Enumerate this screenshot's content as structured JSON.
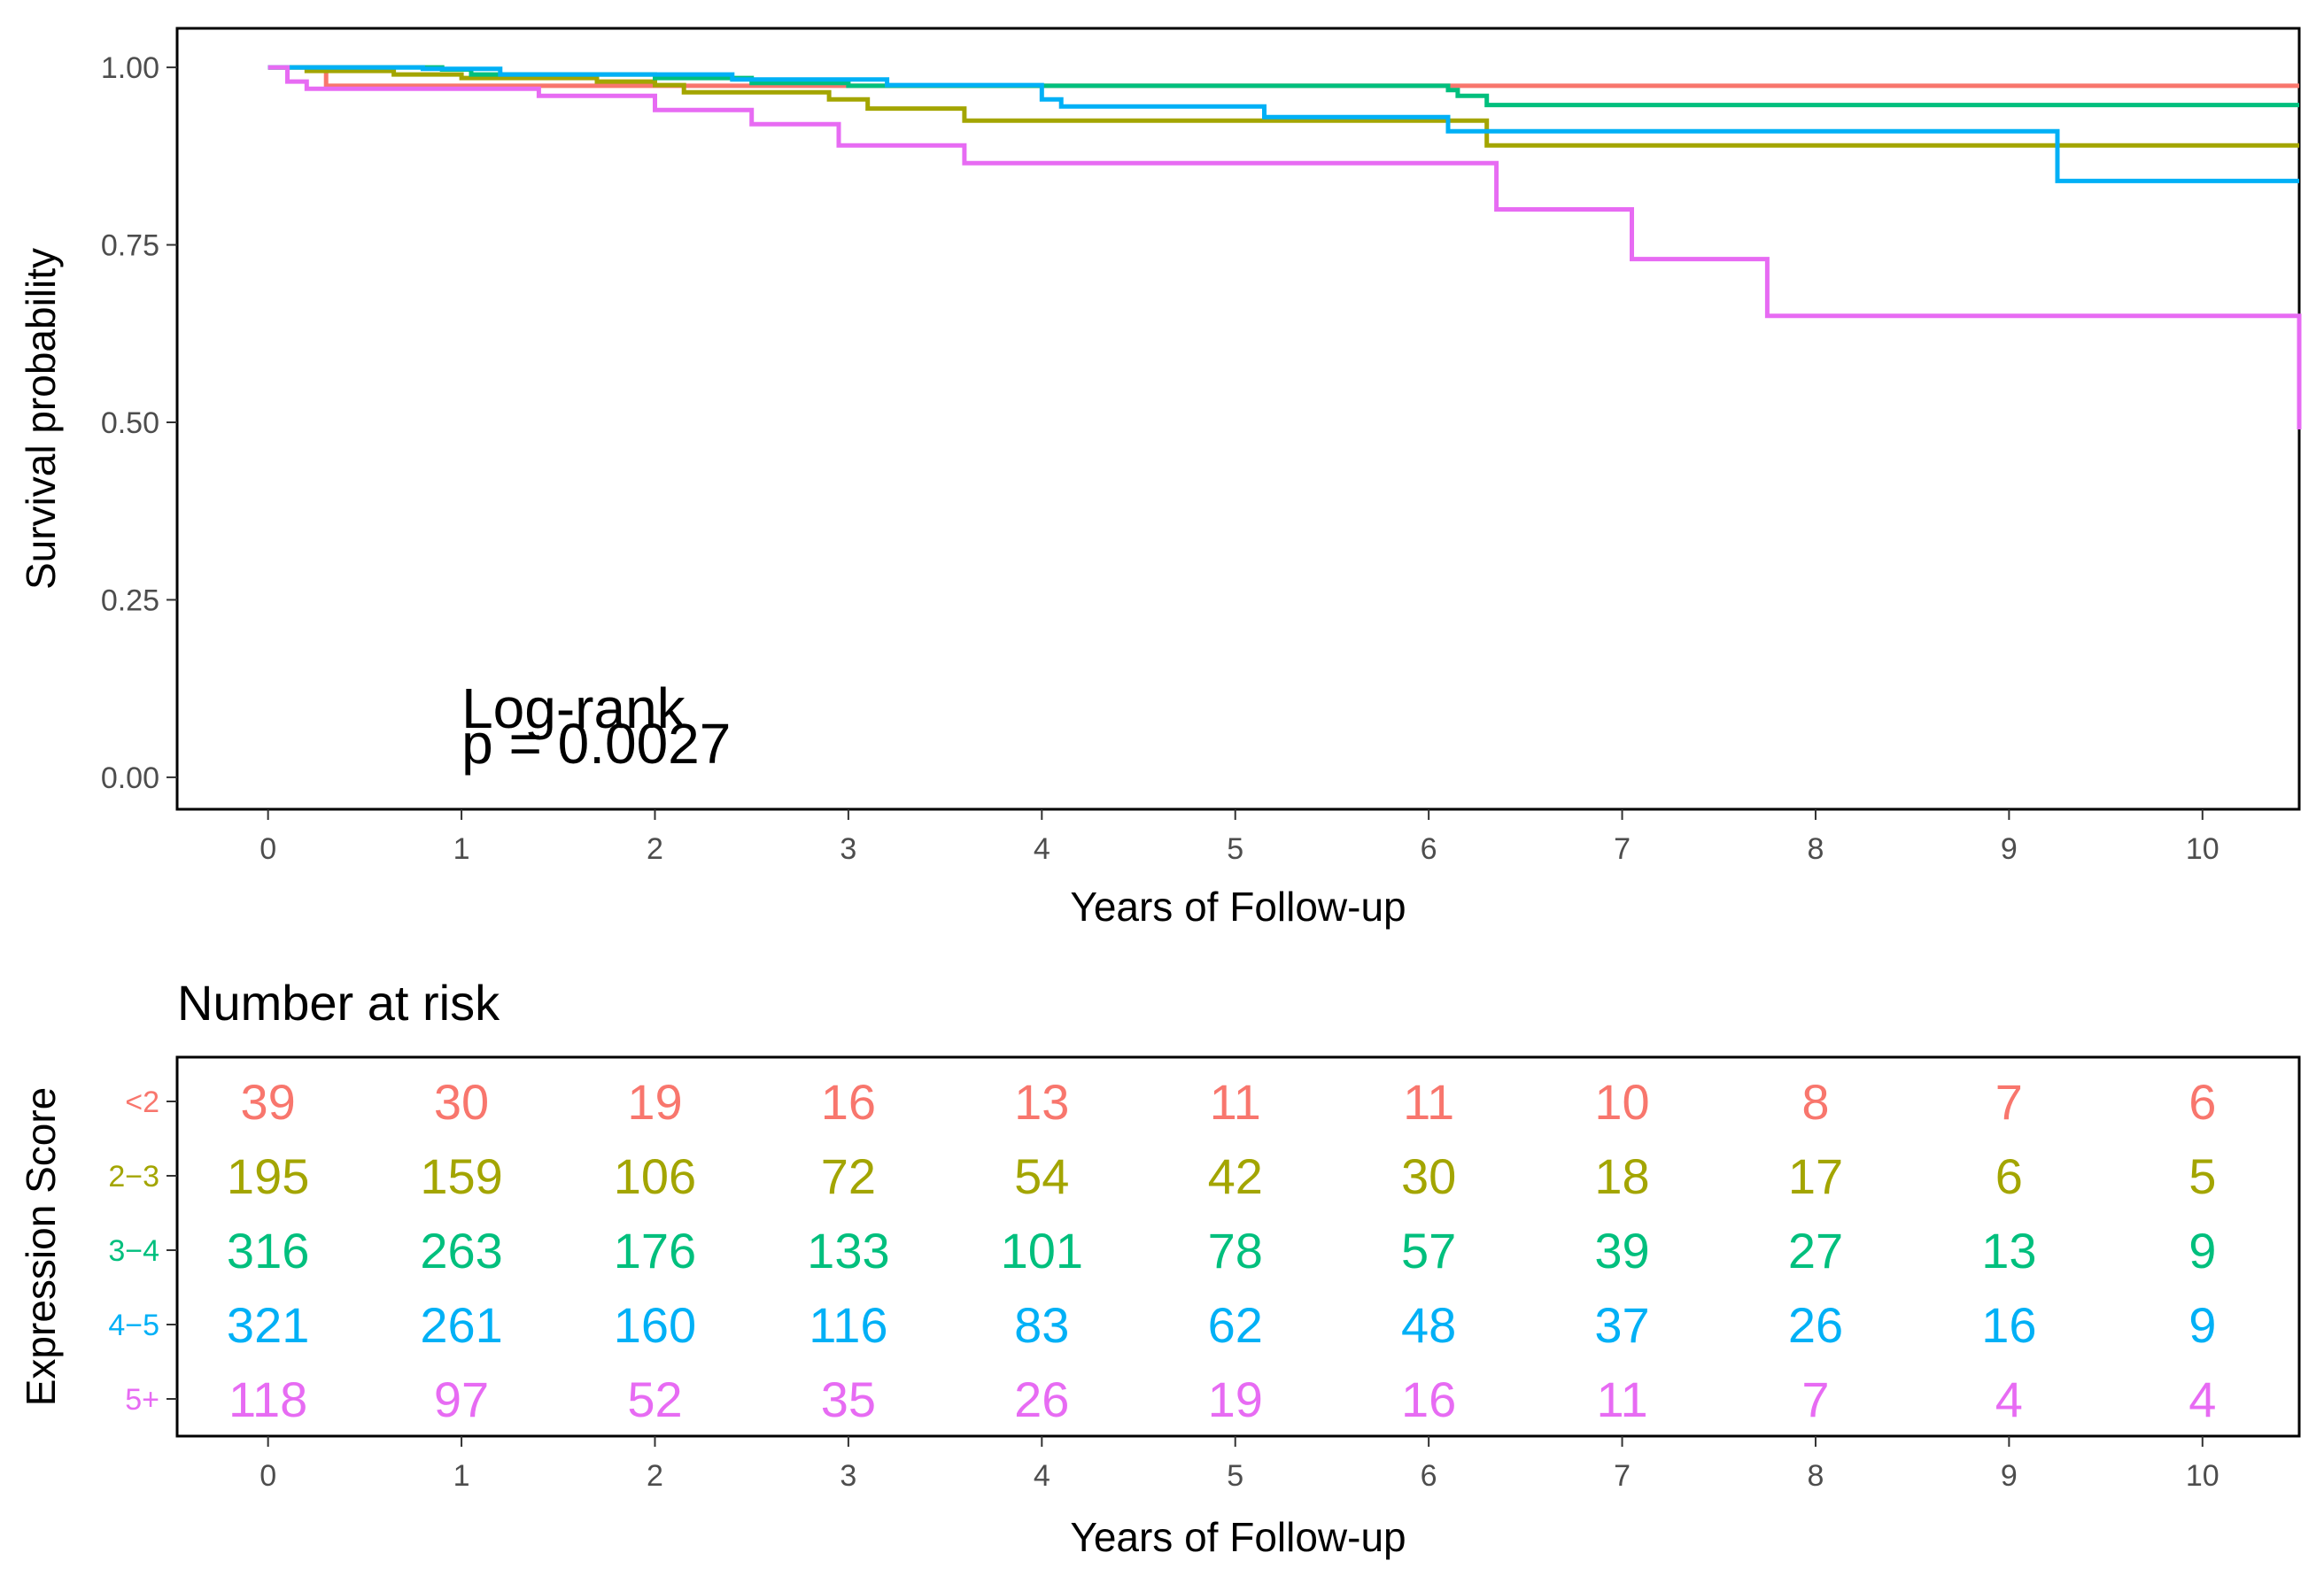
{
  "chart_data": [
    {
      "type": "line",
      "subtype": "kaplan-meier step curves",
      "title": "",
      "xlabel": "Years of Follow-up",
      "ylabel": "Survival probability",
      "xlim": [
        -0.47,
        10.5
      ],
      "ylim": [
        -0.045,
        1.055
      ],
      "x_ticks": [
        "0",
        "1",
        "2",
        "3",
        "4",
        "5",
        "6",
        "7",
        "8",
        "9",
        "10"
      ],
      "y_ticks": [
        "0.00",
        "0.25",
        "0.50",
        "0.75",
        "1.00"
      ],
      "y_tick_values": [
        0,
        0.25,
        0.5,
        0.75,
        1.0
      ],
      "grid": false,
      "annotation": {
        "line1": "Log-rank",
        "line2": "p = 0.0027",
        "x": 1.0,
        "y": 0.02
      },
      "series": [
        {
          "name": "<2",
          "color": "#F8766D",
          "points": [
            [
              0,
              1.0
            ],
            [
              0.3,
              0.974
            ],
            [
              10.5,
              0.974
            ]
          ]
        },
        {
          "name": "2-3",
          "color": "#A3A500",
          "points": [
            [
              0,
              1.0
            ],
            [
              0.2,
              0.995
            ],
            [
              0.65,
              0.99
            ],
            [
              1.0,
              0.985
            ],
            [
              1.7,
              0.98
            ],
            [
              2.0,
              0.975
            ],
            [
              2.15,
              0.965
            ],
            [
              2.9,
              0.955
            ],
            [
              3.1,
              0.942
            ],
            [
              3.6,
              0.925
            ],
            [
              6.3,
              0.89
            ],
            [
              10.5,
              0.89
            ]
          ]
        },
        {
          "name": "3-4",
          "color": "#00BF7D",
          "points": [
            [
              0,
              1.0
            ],
            [
              0.9,
              0.997
            ],
            [
              1.05,
              0.99
            ],
            [
              2.0,
              0.985
            ],
            [
              2.5,
              0.978
            ],
            [
              3.0,
              0.974
            ],
            [
              6.1,
              0.968
            ],
            [
              6.15,
              0.96
            ],
            [
              6.3,
              0.947
            ],
            [
              10.5,
              0.947
            ]
          ]
        },
        {
          "name": "4-5",
          "color": "#00B0F6",
          "points": [
            [
              0,
              1.0
            ],
            [
              0.8,
              0.998
            ],
            [
              1.2,
              0.99
            ],
            [
              2.4,
              0.983
            ],
            [
              3.2,
              0.975
            ],
            [
              4.0,
              0.955
            ],
            [
              4.1,
              0.945
            ],
            [
              5.15,
              0.93
            ],
            [
              6.1,
              0.91
            ],
            [
              6.3,
              0.91
            ],
            [
              9.25,
              0.84
            ],
            [
              10.5,
              0.84
            ]
          ]
        },
        {
          "name": "5+",
          "color": "#E76BF3",
          "points": [
            [
              0,
              1.0
            ],
            [
              0.1,
              0.98
            ],
            [
              0.2,
              0.97
            ],
            [
              1.4,
              0.96
            ],
            [
              2.0,
              0.94
            ],
            [
              2.5,
              0.92
            ],
            [
              2.95,
              0.89
            ],
            [
              3.6,
              0.865
            ],
            [
              6.35,
              0.8
            ],
            [
              7.05,
              0.73
            ],
            [
              7.75,
              0.65
            ],
            [
              10.5,
              0.65
            ],
            [
              10.5,
              0.49
            ]
          ]
        }
      ]
    },
    {
      "type": "table",
      "title": "Number at risk",
      "xlabel": "Years of Follow-up",
      "ylabel": "Expression Score",
      "xlim": [
        -0.47,
        10.5
      ],
      "x_ticks": [
        "0",
        "1",
        "2",
        "3",
        "4",
        "5",
        "6",
        "7",
        "8",
        "9",
        "10"
      ],
      "rows": [
        {
          "label": "<2",
          "color": "#F8766D",
          "values": [
            "39",
            "30",
            "19",
            "16",
            "13",
            "11",
            "11",
            "10",
            "8",
            "7",
            "6"
          ]
        },
        {
          "label": "2−3",
          "color": "#A3A500",
          "values": [
            "195",
            "159",
            "106",
            "72",
            "54",
            "42",
            "30",
            "18",
            "17",
            "6",
            "5"
          ]
        },
        {
          "label": "3−4",
          "color": "#00BF7D",
          "values": [
            "316",
            "263",
            "176",
            "133",
            "101",
            "78",
            "57",
            "39",
            "27",
            "13",
            "9"
          ]
        },
        {
          "label": "4−5",
          "color": "#00B0F6",
          "values": [
            "321",
            "261",
            "160",
            "116",
            "83",
            "62",
            "48",
            "37",
            "26",
            "16",
            "9"
          ]
        },
        {
          "label": "5+",
          "color": "#E76BF3",
          "values": [
            "118",
            "97",
            "52",
            "35",
            "26",
            "19",
            "16",
            "11",
            "7",
            "4",
            "4"
          ]
        }
      ]
    }
  ]
}
